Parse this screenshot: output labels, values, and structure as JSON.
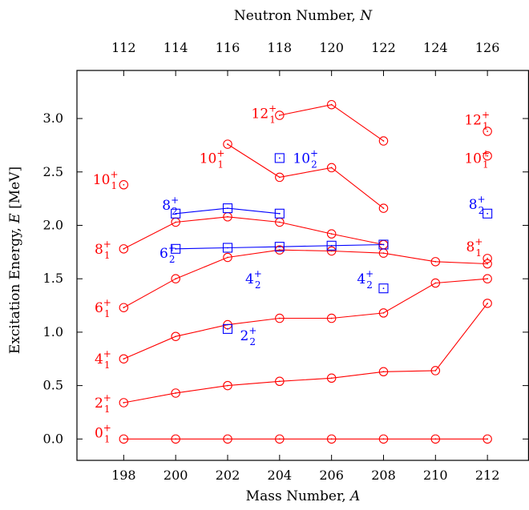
{
  "chart_data": {
    "type": "scatter",
    "title": "",
    "xlabel": "Mass Number, A",
    "xlabel_text": "Mass Number, ",
    "xlabel_var": "A",
    "x2label": "Neutron Number, N",
    "x2label_text": "Neutron Number, ",
    "x2label_var": "N",
    "ylabel": "Excitation Energy, E [MeV]",
    "ylabel_pre": "Excitation Energy, ",
    "ylabel_var": "E",
    "ylabel_post": " [MeV]",
    "xlim": [
      196.2,
      213.6
    ],
    "ylim": [
      -0.2,
      3.45
    ],
    "x_ticks": [
      "198",
      "200",
      "202",
      "204",
      "206",
      "208",
      "210",
      "212"
    ],
    "x_tick_values": [
      198,
      200,
      202,
      204,
      206,
      208,
      210,
      212
    ],
    "x2_ticks": [
      "112",
      "114",
      "116",
      "118",
      "120",
      "122",
      "124",
      "126"
    ],
    "x2_tick_values": [
      112,
      114,
      116,
      118,
      120,
      122,
      124,
      126
    ],
    "y_ticks": [
      "0.0",
      "0.5",
      "1.0",
      "1.5",
      "2.0",
      "2.5",
      "3.0"
    ],
    "y_tick_values": [
      0,
      0.5,
      1.0,
      1.5,
      2.0,
      2.5,
      3.0
    ],
    "grid": false,
    "colors": {
      "yrast": "#ff0000",
      "nonyrast": "#0000ff"
    },
    "series": [
      {
        "name": "0_1^+",
        "color": "#ff0000",
        "marker": "circle",
        "x": [
          198,
          200,
          202,
          204,
          206,
          208,
          210,
          212
        ],
        "y": [
          0,
          0,
          0,
          0,
          0,
          0,
          0,
          0
        ]
      },
      {
        "name": "2_1^+",
        "color": "#ff0000",
        "marker": "circle",
        "x": [
          198,
          200,
          202,
          204,
          206,
          208,
          210,
          212
        ],
        "y": [
          0.34,
          0.43,
          0.5,
          0.54,
          0.57,
          0.63,
          0.64,
          1.27
        ]
      },
      {
        "name": "4_1^+",
        "color": "#ff0000",
        "marker": "circle",
        "x": [
          198,
          200,
          202,
          204,
          206,
          208,
          210,
          212
        ],
        "y": [
          0.75,
          0.96,
          1.07,
          1.13,
          1.13,
          1.18,
          1.46,
          1.5
        ]
      },
      {
        "name": "6_1^+",
        "color": "#ff0000",
        "marker": "circle",
        "x": [
          198,
          200,
          202,
          204,
          206,
          208,
          210,
          212
        ],
        "y": [
          1.23,
          1.5,
          1.7,
          1.77,
          1.76,
          1.74,
          1.66,
          1.64
        ]
      },
      {
        "name": "8_1^+",
        "color": "#ff0000",
        "marker": "circle",
        "x": [
          198,
          200,
          202,
          204,
          206,
          208
        ],
        "y": [
          1.78,
          2.03,
          2.08,
          2.03,
          1.92,
          1.82
        ]
      },
      {
        "name": "8_1^+ (A=212)",
        "color": "#ff0000",
        "marker": "circle",
        "x": [
          212
        ],
        "y": [
          1.69
        ]
      },
      {
        "name": "10_1^+",
        "color": "#ff0000",
        "marker": "circle",
        "x": [
          198
        ],
        "y": [
          2.38
        ]
      },
      {
        "name": "10_1^+ (A=202-208)",
        "color": "#ff0000",
        "marker": "circle",
        "x": [
          202,
          204,
          206,
          208
        ],
        "y": [
          2.76,
          2.45,
          2.54,
          2.16
        ]
      },
      {
        "name": "10_1^+ (A=212)",
        "color": "#ff0000",
        "marker": "circle",
        "x": [
          212
        ],
        "y": [
          2.65
        ]
      },
      {
        "name": "12_1^+",
        "color": "#ff0000",
        "marker": "circle",
        "x": [
          204,
          206,
          208
        ],
        "y": [
          3.03,
          3.13,
          2.79
        ]
      },
      {
        "name": "12_1^+ (A=212)",
        "color": "#ff0000",
        "marker": "circle",
        "x": [
          212
        ],
        "y": [
          2.88
        ]
      },
      {
        "name": "2_2^+",
        "color": "#0000ff",
        "marker": "square",
        "x": [
          202
        ],
        "y": [
          1.03
        ]
      },
      {
        "name": "4_2^+",
        "color": "#0000ff",
        "marker": "square",
        "x": [
          208
        ],
        "y": [
          1.41
        ]
      },
      {
        "name": "6_2^+",
        "color": "#0000ff",
        "marker": "square",
        "x": [
          200,
          202,
          204,
          206,
          208
        ],
        "y": [
          1.78,
          1.79,
          1.8,
          1.81,
          1.82
        ]
      },
      {
        "name": "8_2^+",
        "color": "#0000ff",
        "marker": "square",
        "x": [
          200,
          202,
          204
        ],
        "y": [
          2.11,
          2.16,
          2.11
        ]
      },
      {
        "name": "8_2^+ (A=212)",
        "color": "#0000ff",
        "marker": "square",
        "x": [
          212
        ],
        "y": [
          2.11
        ]
      },
      {
        "name": "10_2^+",
        "color": "#0000ff",
        "marker": "square",
        "x": [
          204
        ],
        "y": [
          2.63
        ]
      }
    ],
    "annotations": [
      {
        "j": "0",
        "i": "1",
        "color": "#ff0000",
        "x": 197.2,
        "y": 0.06
      },
      {
        "j": "2",
        "i": "1",
        "color": "#ff0000",
        "x": 197.2,
        "y": 0.34
      },
      {
        "j": "4",
        "i": "1",
        "color": "#ff0000",
        "x": 197.2,
        "y": 0.75
      },
      {
        "j": "6",
        "i": "1",
        "color": "#ff0000",
        "x": 197.2,
        "y": 1.23
      },
      {
        "j": "8",
        "i": "1",
        "color": "#ff0000",
        "x": 197.2,
        "y": 1.78
      },
      {
        "j": "10",
        "i": "1",
        "color": "#ff0000",
        "x": 197.3,
        "y": 2.43
      },
      {
        "j": "12",
        "i": "1",
        "color": "#ff0000",
        "x": 203.4,
        "y": 3.05
      },
      {
        "j": "10",
        "i": "1",
        "color": "#ff0000",
        "x": 201.4,
        "y": 2.63
      },
      {
        "j": "12",
        "i": "1",
        "color": "#ff0000",
        "x": 211.6,
        "y": 2.99
      },
      {
        "j": "10",
        "i": "1",
        "color": "#ff0000",
        "x": 211.6,
        "y": 2.63
      },
      {
        "j": "8",
        "i": "1",
        "color": "#ff0000",
        "x": 211.5,
        "y": 1.8
      },
      {
        "j": "8",
        "i": "2",
        "color": "#0000ff",
        "x": 199.8,
        "y": 2.19
      },
      {
        "j": "6",
        "i": "2",
        "color": "#0000ff",
        "x": 199.7,
        "y": 1.74
      },
      {
        "j": "4",
        "i": "2",
        "color": "#0000ff",
        "x": 203.0,
        "y": 1.5
      },
      {
        "j": "10",
        "i": "2",
        "color": "#0000ff",
        "x": 205.0,
        "y": 2.63
      },
      {
        "j": "4",
        "i": "2",
        "color": "#0000ff",
        "x": 207.3,
        "y": 1.5
      },
      {
        "j": "2",
        "i": "2",
        "color": "#0000ff",
        "x": 202.8,
        "y": 0.97
      },
      {
        "j": "8",
        "i": "2",
        "color": "#0000ff",
        "x": 211.6,
        "y": 2.2
      }
    ]
  }
}
